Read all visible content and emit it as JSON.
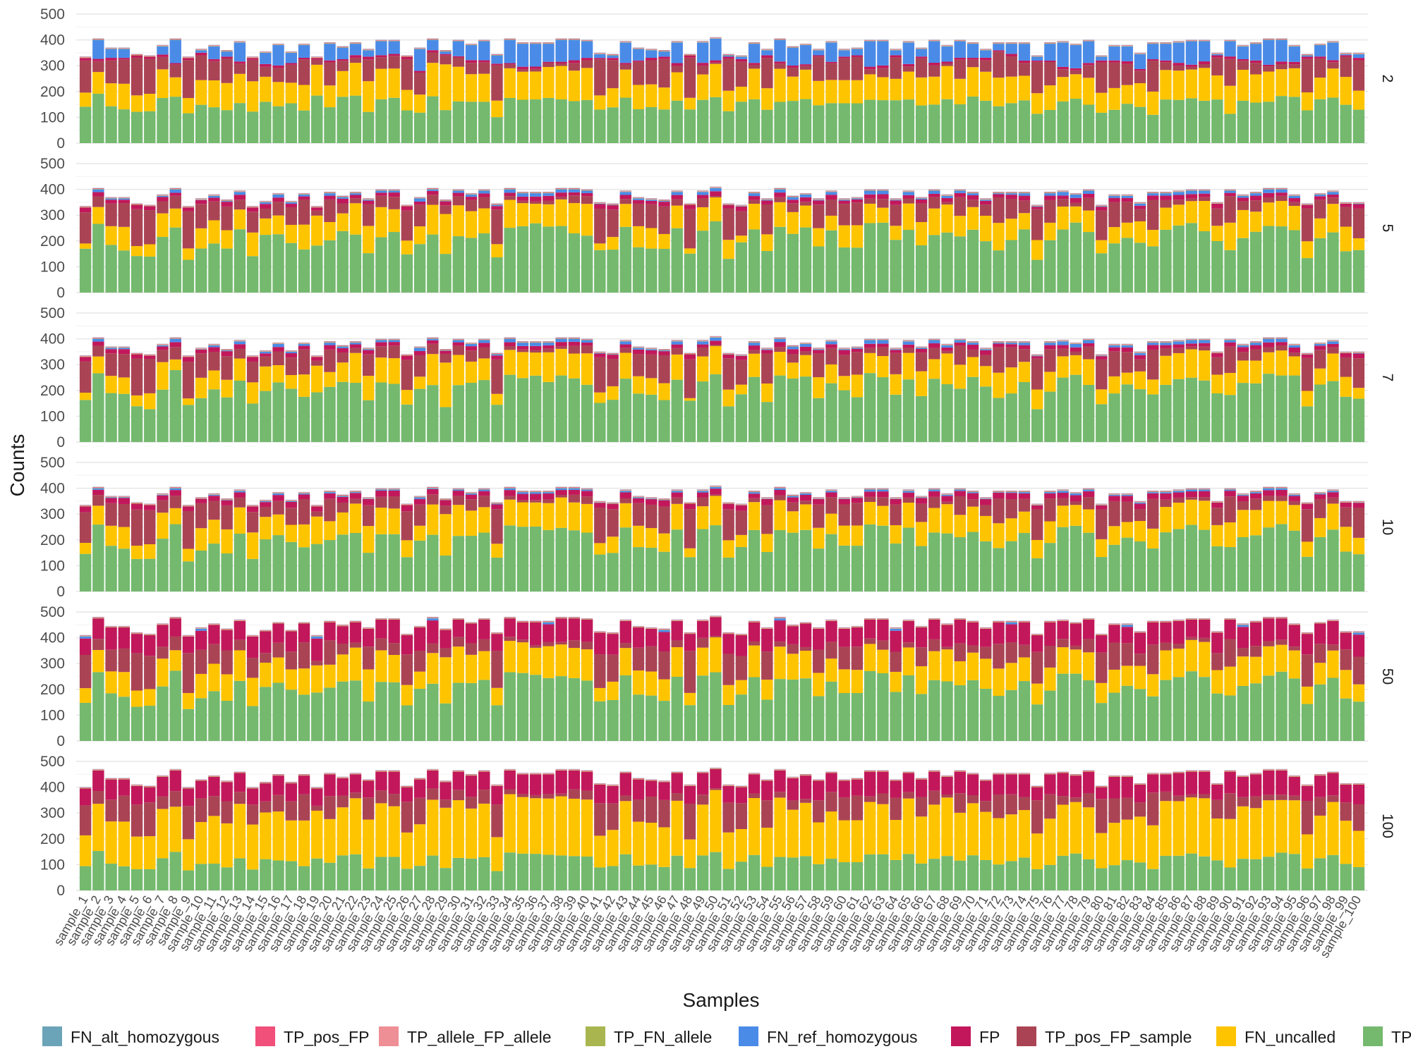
{
  "chart_data": {
    "type": "bar",
    "stacked": true,
    "xlabel": "Samples",
    "ylabel": "Counts",
    "ylim": [
      0,
      500
    ],
    "yticks": [
      0,
      100,
      200,
      300,
      400,
      500
    ],
    "grid": true,
    "legend_position": "bottom",
    "facets": [
      "2",
      "5",
      "7",
      "10",
      "50",
      "100"
    ],
    "sample_prefix": "sample_",
    "sample_count": 100,
    "series": [
      {
        "name": "FN_alt_homozygous",
        "color": "#6ba3b8"
      },
      {
        "name": "TP_pos_FP",
        "color": "#f0507a"
      },
      {
        "name": "TP_allele_FP_allele",
        "color": "#ee8e95"
      },
      {
        "name": "TP_FN_allele",
        "color": "#a9b650"
      },
      {
        "name": "FN_ref_homozygous",
        "color": "#4b8be8"
      },
      {
        "name": "FP",
        "color": "#c2185b"
      },
      {
        "name": "TP_pos_FP_sample",
        "color": "#aa4455"
      },
      {
        "name": "FN_uncalled",
        "color": "#ffc400"
      },
      {
        "name": "TP",
        "color": "#74b96e"
      }
    ],
    "stack_order": [
      "TP",
      "FN_uncalled",
      "TP_pos_FP_sample",
      "FP",
      "FN_ref_homozygous",
      "TP_FN_allele",
      "TP_allele_FP_allele",
      "TP_pos_FP",
      "FN_alt_homozygous"
    ],
    "sample_approx": {
      "totals": [
        330,
        400,
        365,
        365,
        340,
        335,
        375,
        400,
        330,
        360,
        375,
        355,
        390,
        330,
        350,
        380,
        350,
        380,
        330,
        385,
        370,
        385,
        360,
        395,
        395,
        335,
        365,
        400,
        355,
        395,
        380,
        395,
        340,
        400,
        385,
        385,
        385,
        400,
        400,
        395,
        345,
        340,
        390,
        365,
        360,
        355,
        390,
        340,
        390,
        405,
        340,
        335,
        385,
        360,
        400,
        370,
        380,
        360,
        390,
        360,
        365,
        395,
        395,
        360,
        390,
        365,
        395,
        375,
        395,
        385,
        360,
        385,
        385,
        385,
        335,
        385,
        390,
        380,
        395,
        335,
        375,
        375,
        345,
        385,
        385,
        390,
        395,
        395,
        345,
        395,
        375,
        385,
        400,
        400,
        375,
        340,
        380,
        390,
        345,
        345
      ],
      "tp_base": [
        142,
        182,
        145,
        132,
        124,
        128,
        165,
        180,
        118,
        155,
        140,
        128,
        158,
        125,
        165,
        145,
        155,
        128,
        185,
        140,
        180,
        188,
        122,
        172,
        178,
        128,
        118,
        182,
        130,
        180,
        165,
        162,
        110,
        175,
        170,
        172,
        175,
        170,
        165,
        168,
        130,
        140,
        178,
        132,
        142,
        130,
        165,
        130,
        170,
        180,
        125,
        165,
        172,
        132,
        162,
        165,
        172,
        148,
        155,
        155,
        155,
        170,
        168,
        170,
        172,
        148,
        152,
        172,
        152,
        182,
        168,
        142,
        158,
        165,
        150,
        128,
        162,
        172,
        150,
        160,
        130,
        158,
        145,
        110,
        170,
        170,
        172,
        168,
        172,
        115,
        165,
        158,
        158,
        185,
        178,
        128,
        172,
        180,
        172,
        132
      ],
      "fn_uncalled": [
        55,
        80,
        90,
        100,
        65,
        70,
        105,
        75,
        60,
        100,
        105,
        105,
        115,
        120,
        100,
        95,
        80,
        100,
        120,
        85,
        100,
        130,
        120,
        120,
        115,
        80,
        70,
        130,
        180,
        150,
        110,
        110,
        70,
        115,
        110,
        110,
        120,
        130,
        120,
        125,
        55,
        75,
        110,
        95,
        90,
        85,
        110,
        45,
        100,
        130,
        80,
        60,
        120,
        85,
        130,
        95,
        115,
        95,
        90,
        90,
        90,
        100,
        90,
        85,
        110,
        110,
        110,
        130,
        100,
        115,
        115,
        110,
        105,
        95,
        105,
        95,
        95,
        95,
        105,
        105,
        85,
        75,
        95,
        90,
        115,
        115,
        110,
        130,
        95,
        110,
        120,
        110,
        115,
        105,
        110,
        70,
        85,
        115,
        125,
        75
      ],
      "tp_pos_fp_sample": [
        125,
        40,
        90,
        95,
        150,
        140,
        45,
        50,
        150,
        100,
        75,
        95,
        40,
        85,
        40,
        55,
        70,
        100,
        20,
        90,
        40,
        20,
        85,
        45,
        50,
        120,
        85,
        40,
        35,
        40,
        45,
        45,
        150,
        15,
        10,
        10,
        15,
        10,
        30,
        30,
        140,
        110,
        20,
        90,
        95,
        110,
        25,
        155,
        35,
        5,
        125,
        100,
        15,
        120,
        20,
        35,
        15,
        95,
        65,
        85,
        90,
        20,
        35,
        85,
        20,
        75,
        45,
        10,
        75,
        30,
        45,
        100,
        80,
        50,
        160,
        90,
        30,
        15,
        50,
        160,
        100,
        85,
        50,
        120,
        30,
        20,
        10,
        15,
        70,
        105,
        35,
        45,
        20,
        20,
        15,
        130,
        75,
        25,
        90,
        120
      ],
      "fn_ref": [
        0,
        70,
        35,
        35,
        0,
        0,
        30,
        90,
        0,
        10,
        50,
        20,
        75,
        0,
        45,
        80,
        40,
        50,
        0,
        65,
        45,
        45,
        25,
        55,
        50,
        0,
        85,
        40,
        10,
        65,
        60,
        75,
        35,
        90,
        90,
        90,
        70,
        85,
        80,
        65,
        15,
        10,
        80,
        45,
        30,
        20,
        80,
        0,
        80,
        85,
        5,
        10,
        75,
        20,
        85,
        70,
        75,
        20,
        75,
        25,
        25,
        100,
        95,
        20,
        85,
        30,
        85,
        60,
        65,
        55,
        30,
        25,
        40,
        65,
        20,
        65,
        95,
        90,
        85,
        20,
        55,
        60,
        60,
        60,
        65,
        80,
        90,
        80,
        5,
        60,
        50,
        65,
        95,
        85,
        60,
        5,
        45,
        70,
        5,
        15
      ]
    }
  }
}
